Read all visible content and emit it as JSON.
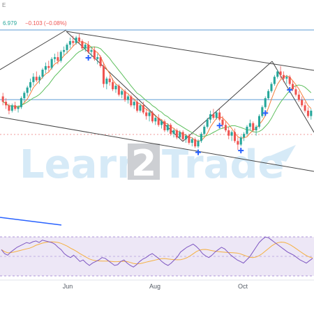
{
  "header": {
    "price_readout": "6.979",
    "change_readout": "−0.103 (−0.08%)",
    "corner_glyph": "E"
  },
  "watermark": {
    "brand_left": "Learn",
    "brand_digit": "2",
    "brand_right": "Trade"
  },
  "colors": {
    "bull": "#26a69a",
    "bear": "#ef5350",
    "ma_fast": "#f57c3a",
    "ma_slow": "#5cbf5c",
    "trendline": "#444444",
    "horizontal_level": "#5b9bd5",
    "signal_marker": "#2962ff",
    "rsi_line": "#7e57c2",
    "rsi_signal": "#f5b041",
    "rsi_band": "#ede7f6",
    "watermark_blue": "#4aa3df",
    "watermark_dark": "#1f2a3a"
  },
  "chart_data": [
    {
      "type": "candlestick",
      "title": "",
      "x_tick_labels": [
        "Jun",
        "Aug",
        "Oct"
      ],
      "indicators": [
        "moving average (fast)",
        "moving average (slow)"
      ],
      "horizontal_levels": [
        "upper",
        "middle"
      ],
      "channel": "descending parallel channel",
      "signal_markers": 6,
      "candles": [
        {
          "o": 60,
          "h": 62,
          "l": 55,
          "c": 57
        },
        {
          "o": 57,
          "h": 59,
          "l": 53,
          "c": 55
        },
        {
          "o": 55,
          "h": 56,
          "l": 50,
          "c": 52
        },
        {
          "o": 52,
          "h": 56,
          "l": 51,
          "c": 55
        },
        {
          "o": 55,
          "h": 57,
          "l": 52,
          "c": 53
        },
        {
          "o": 53,
          "h": 55,
          "l": 51,
          "c": 54
        },
        {
          "o": 54,
          "h": 60,
          "l": 53,
          "c": 59
        },
        {
          "o": 59,
          "h": 63,
          "l": 57,
          "c": 62
        },
        {
          "o": 62,
          "h": 66,
          "l": 60,
          "c": 65
        },
        {
          "o": 65,
          "h": 70,
          "l": 63,
          "c": 68
        },
        {
          "o": 68,
          "h": 73,
          "l": 66,
          "c": 71
        },
        {
          "o": 71,
          "h": 74,
          "l": 68,
          "c": 69
        },
        {
          "o": 69,
          "h": 72,
          "l": 67,
          "c": 71
        },
        {
          "o": 71,
          "h": 76,
          "l": 70,
          "c": 75
        },
        {
          "o": 75,
          "h": 79,
          "l": 73,
          "c": 77
        },
        {
          "o": 77,
          "h": 80,
          "l": 74,
          "c": 76
        },
        {
          "o": 76,
          "h": 82,
          "l": 75,
          "c": 81
        },
        {
          "o": 81,
          "h": 84,
          "l": 79,
          "c": 82
        },
        {
          "o": 82,
          "h": 85,
          "l": 78,
          "c": 80
        },
        {
          "o": 80,
          "h": 86,
          "l": 79,
          "c": 85
        },
        {
          "o": 85,
          "h": 88,
          "l": 83,
          "c": 86
        },
        {
          "o": 86,
          "h": 90,
          "l": 84,
          "c": 89
        },
        {
          "o": 89,
          "h": 93,
          "l": 87,
          "c": 91
        },
        {
          "o": 91,
          "h": 94,
          "l": 88,
          "c": 90
        },
        {
          "o": 90,
          "h": 94,
          "l": 89,
          "c": 93
        },
        {
          "o": 93,
          "h": 95,
          "l": 90,
          "c": 91
        },
        {
          "o": 91,
          "h": 92,
          "l": 86,
          "c": 87
        },
        {
          "o": 87,
          "h": 90,
          "l": 85,
          "c": 89
        },
        {
          "o": 89,
          "h": 91,
          "l": 84,
          "c": 85
        },
        {
          "o": 85,
          "h": 88,
          "l": 82,
          "c": 86
        },
        {
          "o": 86,
          "h": 88,
          "l": 80,
          "c": 81
        },
        {
          "o": 81,
          "h": 84,
          "l": 78,
          "c": 82
        },
        {
          "o": 82,
          "h": 83,
          "l": 76,
          "c": 77
        },
        {
          "o": 77,
          "h": 79,
          "l": 65,
          "c": 67
        },
        {
          "o": 67,
          "h": 71,
          "l": 64,
          "c": 70
        },
        {
          "o": 70,
          "h": 72,
          "l": 66,
          "c": 68
        },
        {
          "o": 68,
          "h": 70,
          "l": 63,
          "c": 64
        },
        {
          "o": 64,
          "h": 67,
          "l": 62,
          "c": 66
        },
        {
          "o": 66,
          "h": 67,
          "l": 60,
          "c": 61
        },
        {
          "o": 61,
          "h": 64,
          "l": 59,
          "c": 63
        },
        {
          "o": 63,
          "h": 64,
          "l": 57,
          "c": 58
        },
        {
          "o": 58,
          "h": 61,
          "l": 56,
          "c": 60
        },
        {
          "o": 60,
          "h": 61,
          "l": 54,
          "c": 55
        },
        {
          "o": 55,
          "h": 58,
          "l": 53,
          "c": 57
        },
        {
          "o": 57,
          "h": 58,
          "l": 51,
          "c": 52
        },
        {
          "o": 52,
          "h": 56,
          "l": 51,
          "c": 55
        },
        {
          "o": 55,
          "h": 57,
          "l": 50,
          "c": 51
        },
        {
          "o": 51,
          "h": 53,
          "l": 47,
          "c": 49
        },
        {
          "o": 49,
          "h": 52,
          "l": 46,
          "c": 51
        },
        {
          "o": 51,
          "h": 52,
          "l": 45,
          "c": 46
        },
        {
          "o": 46,
          "h": 49,
          "l": 44,
          "c": 48
        },
        {
          "o": 48,
          "h": 50,
          "l": 43,
          "c": 44
        },
        {
          "o": 44,
          "h": 47,
          "l": 42,
          "c": 46
        },
        {
          "o": 46,
          "h": 47,
          "l": 40,
          "c": 41
        },
        {
          "o": 41,
          "h": 45,
          "l": 40,
          "c": 44
        },
        {
          "o": 44,
          "h": 45,
          "l": 38,
          "c": 39
        },
        {
          "o": 39,
          "h": 42,
          "l": 37,
          "c": 41
        },
        {
          "o": 41,
          "h": 42,
          "l": 36,
          "c": 37
        },
        {
          "o": 37,
          "h": 41,
          "l": 36,
          "c": 40
        },
        {
          "o": 40,
          "h": 41,
          "l": 35,
          "c": 36
        },
        {
          "o": 36,
          "h": 39,
          "l": 34,
          "c": 38
        },
        {
          "o": 38,
          "h": 39,
          "l": 33,
          "c": 34
        },
        {
          "o": 34,
          "h": 37,
          "l": 32,
          "c": 36
        },
        {
          "o": 36,
          "h": 37,
          "l": 31,
          "c": 32
        },
        {
          "o": 32,
          "h": 36,
          "l": 31,
          "c": 35
        },
        {
          "o": 35,
          "h": 40,
          "l": 34,
          "c": 39
        },
        {
          "o": 39,
          "h": 44,
          "l": 38,
          "c": 43
        },
        {
          "o": 43,
          "h": 48,
          "l": 42,
          "c": 47
        },
        {
          "o": 47,
          "h": 52,
          "l": 45,
          "c": 50
        },
        {
          "o": 50,
          "h": 53,
          "l": 47,
          "c": 48
        },
        {
          "o": 48,
          "h": 52,
          "l": 47,
          "c": 51
        },
        {
          "o": 51,
          "h": 53,
          "l": 46,
          "c": 47
        },
        {
          "o": 47,
          "h": 49,
          "l": 42,
          "c": 44
        },
        {
          "o": 44,
          "h": 46,
          "l": 40,
          "c": 41
        },
        {
          "o": 41,
          "h": 43,
          "l": 36,
          "c": 38
        },
        {
          "o": 38,
          "h": 41,
          "l": 35,
          "c": 40
        },
        {
          "o": 40,
          "h": 42,
          "l": 34,
          "c": 35
        },
        {
          "o": 35,
          "h": 37,
          "l": 30,
          "c": 33
        },
        {
          "o": 33,
          "h": 38,
          "l": 32,
          "c": 37
        },
        {
          "o": 37,
          "h": 40,
          "l": 35,
          "c": 39
        },
        {
          "o": 39,
          "h": 44,
          "l": 38,
          "c": 43
        },
        {
          "o": 43,
          "h": 47,
          "l": 41,
          "c": 45
        },
        {
          "o": 45,
          "h": 46,
          "l": 40,
          "c": 41
        },
        {
          "o": 41,
          "h": 44,
          "l": 38,
          "c": 43
        },
        {
          "o": 43,
          "h": 50,
          "l": 42,
          "c": 49
        },
        {
          "o": 49,
          "h": 55,
          "l": 48,
          "c": 54
        },
        {
          "o": 54,
          "h": 60,
          "l": 53,
          "c": 59
        },
        {
          "o": 59,
          "h": 64,
          "l": 58,
          "c": 63
        },
        {
          "o": 63,
          "h": 68,
          "l": 62,
          "c": 67
        },
        {
          "o": 67,
          "h": 72,
          "l": 66,
          "c": 71
        },
        {
          "o": 71,
          "h": 75,
          "l": 70,
          "c": 74
        },
        {
          "o": 74,
          "h": 77,
          "l": 70,
          "c": 72
        },
        {
          "o": 72,
          "h": 74,
          "l": 68,
          "c": 70
        },
        {
          "o": 70,
          "h": 72,
          "l": 67,
          "c": 71
        },
        {
          "o": 71,
          "h": 72,
          "l": 66,
          "c": 67
        },
        {
          "o": 67,
          "h": 69,
          "l": 63,
          "c": 64
        },
        {
          "o": 64,
          "h": 66,
          "l": 60,
          "c": 61
        },
        {
          "o": 61,
          "h": 63,
          "l": 57,
          "c": 58
        },
        {
          "o": 58,
          "h": 60,
          "l": 54,
          "c": 55
        },
        {
          "o": 55,
          "h": 57,
          "l": 51,
          "c": 52
        },
        {
          "o": 52,
          "h": 54,
          "l": 48,
          "c": 49
        },
        {
          "o": 49,
          "h": 53,
          "l": 47,
          "c": 52
        }
      ],
      "rsi": [
        55,
        50,
        48,
        52,
        55,
        58,
        60,
        62,
        64,
        63,
        65,
        66,
        64,
        67,
        66,
        65,
        64,
        62,
        58,
        55,
        50,
        47,
        45,
        48,
        44,
        40,
        42,
        38,
        35,
        38,
        40,
        42,
        45,
        44,
        41,
        38,
        35,
        36,
        40,
        42,
        38,
        35,
        33,
        36,
        40,
        43,
        45,
        48,
        50,
        47,
        44,
        40,
        37,
        35,
        38,
        42,
        46,
        52,
        55,
        58,
        60,
        62,
        59,
        55,
        50,
        47,
        45,
        48,
        52,
        55,
        58,
        56,
        52,
        48,
        45,
        42,
        40,
        38,
        42,
        46,
        52,
        58,
        64,
        68,
        71,
        70,
        67,
        64,
        61,
        58,
        55,
        52,
        50,
        48,
        45,
        42,
        40,
        38,
        41,
        44
      ]
    }
  ]
}
